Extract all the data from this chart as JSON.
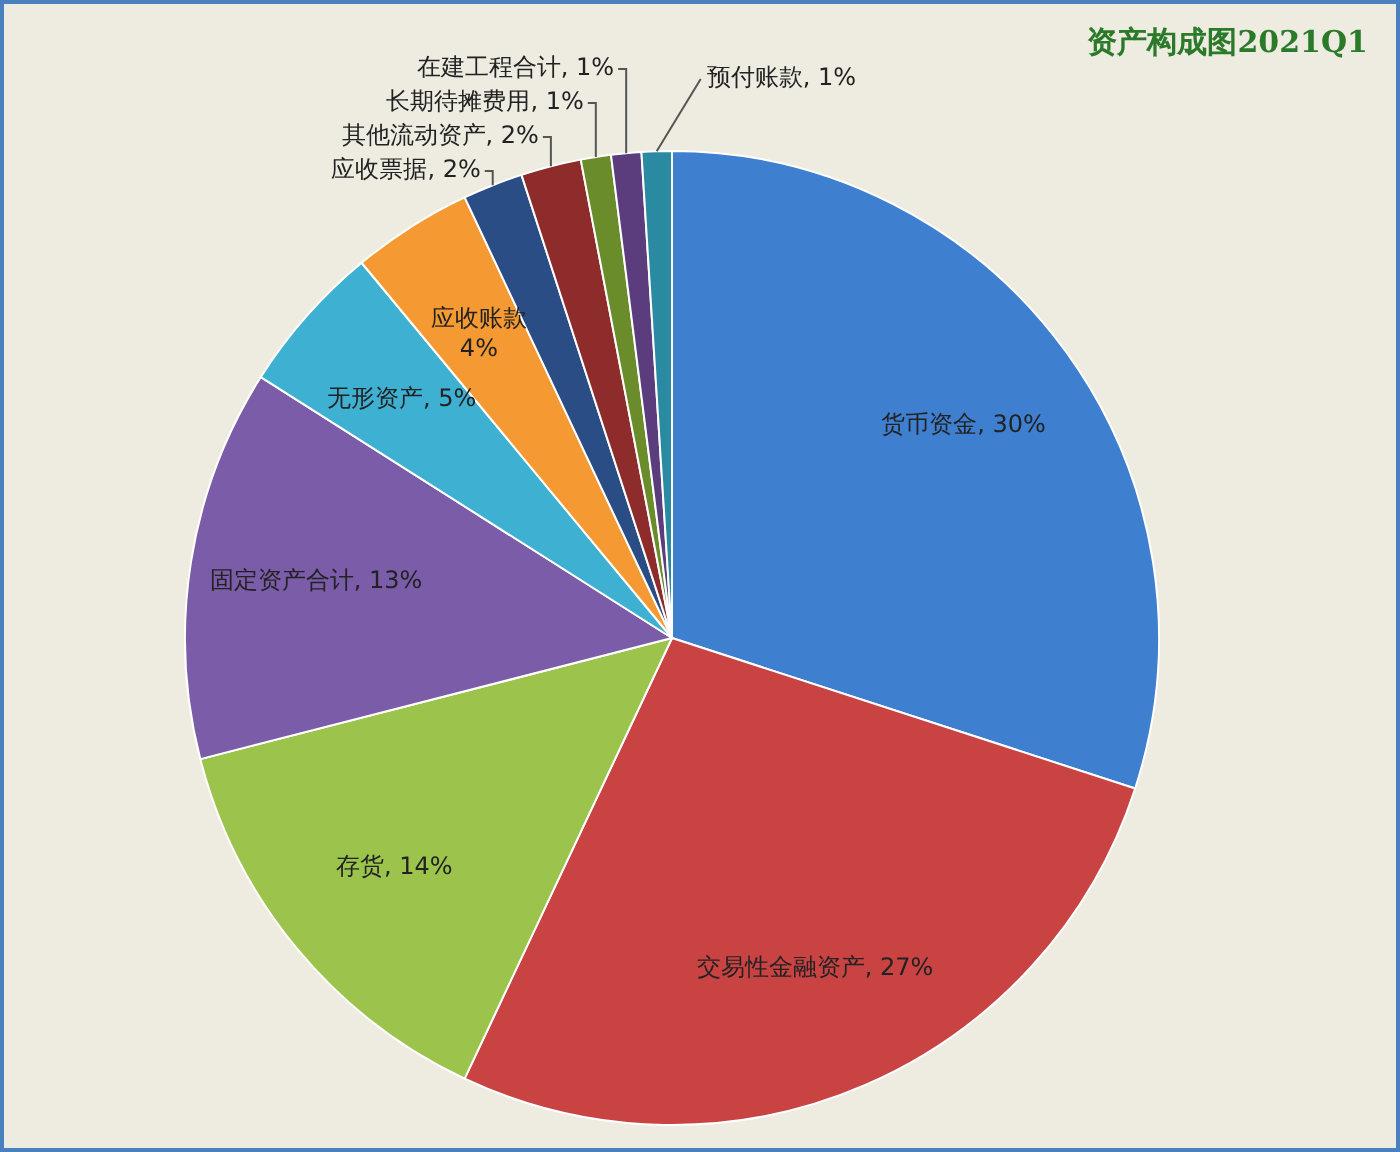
{
  "chart_data": {
    "type": "pie",
    "title": "资产构成图2021Q1",
    "categories": [
      "货币资金",
      "交易性金融资产",
      "存货",
      "固定资产合计",
      "无形资产",
      "应收账款",
      "应收票据",
      "其他流动资产",
      "长期待摊费用",
      "在建工程合计",
      "预付账款"
    ],
    "values": [
      30,
      27,
      14,
      13,
      5,
      4,
      2,
      2,
      1,
      1,
      1
    ],
    "value_labels": [
      "30%",
      "27%",
      "14%",
      "13%",
      "5%",
      "4%",
      "2%",
      "2%",
      "1%",
      "1%",
      "1%"
    ],
    "colors": [
      "#3f7fd0",
      "#c94343",
      "#9cc44c",
      "#7b5ca8",
      "#3eb0d2",
      "#f59a32",
      "#2b4d86",
      "#8e2b2b",
      "#6b8c2b",
      "#5b3c7c",
      "#2a8aa2"
    ],
    "legend": false
  }
}
